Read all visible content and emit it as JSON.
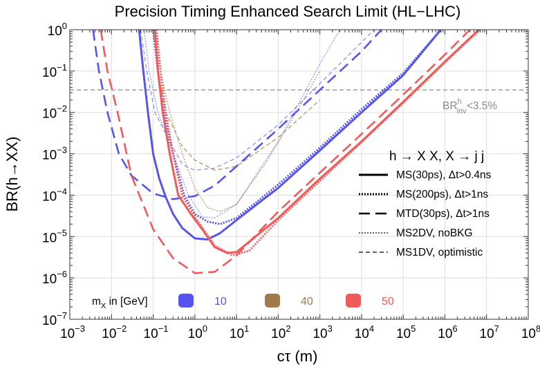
{
  "chart_data": {
    "type": "line",
    "title": "Precision Timing Enhanced Search Limit (HL−LHC)",
    "xlabel": "cτ (m)",
    "ylabel": "BR(h→XX)",
    "xscale": "log",
    "yscale": "log",
    "xlim": [
      0.001,
      100000000
    ],
    "ylim": [
      1e-07,
      1
    ],
    "grid": true,
    "x_ticks": [
      {
        "base": "10",
        "exp": "−3"
      },
      {
        "base": "10",
        "exp": "−2"
      },
      {
        "base": "10",
        "exp": "−1"
      },
      {
        "base": "10",
        "exp": "0"
      },
      {
        "base": "10",
        "exp": "1"
      },
      {
        "base": "10",
        "exp": "2"
      },
      {
        "base": "10",
        "exp": "3"
      },
      {
        "base": "10",
        "exp": "4"
      },
      {
        "base": "10",
        "exp": "5"
      },
      {
        "base": "10",
        "exp": "6"
      },
      {
        "base": "10",
        "exp": "7"
      },
      {
        "base": "10",
        "exp": "8"
      }
    ],
    "y_ticks": [
      {
        "base": "10",
        "exp": "−7"
      },
      {
        "base": "10",
        "exp": "−6"
      },
      {
        "base": "10",
        "exp": "−5"
      },
      {
        "base": "10",
        "exp": "−4"
      },
      {
        "base": "10",
        "exp": "−3"
      },
      {
        "base": "10",
        "exp": "−2"
      },
      {
        "base": "10",
        "exp": "−1"
      },
      {
        "base": "10",
        "exp": "0"
      }
    ],
    "reference_line": {
      "y": 0.035,
      "label_main": "BR",
      "label_sup": "h",
      "label_sub": "inv",
      "label_tail": "<3.5%",
      "color": "#8a8a8a"
    },
    "legend": {
      "heading": "h → X X, X → j j",
      "entries": [
        {
          "style": "solid",
          "label": "MS(30ps), Δt>0.4ns"
        },
        {
          "style": "dotted-thick",
          "label": "MS(200ps), Δt>1ns"
        },
        {
          "style": "dashed-thick",
          "label": "MTD(30ps), Δt>1ns"
        },
        {
          "style": "dotted-thin",
          "label": "MS2DV, noBKG"
        },
        {
          "style": "dashed-thin",
          "label": "MS1DV, optimistic"
        }
      ]
    },
    "mass_legend": {
      "label_main": "m",
      "label_sub": "X",
      "label_tail": " in [GeV]",
      "entries": [
        {
          "mass": "10",
          "color": "#5555ee"
        },
        {
          "mass": "40",
          "color": "#a07a4a"
        },
        {
          "mass": "50",
          "color": "#f05a5a"
        }
      ]
    },
    "series": [
      {
        "name": "MS(30ps) m=10",
        "mass": 10,
        "style": "solid",
        "color": "#5555ee",
        "points": [
          [
            0.046,
            1
          ],
          [
            0.058,
            0.1
          ],
          [
            0.075,
            0.01
          ],
          [
            0.1,
            0.001
          ],
          [
            0.14,
            0.00025
          ],
          [
            0.2,
            9e-05
          ],
          [
            0.3,
            3.5e-05
          ],
          [
            0.5,
            1.6e-05
          ],
          [
            1,
            9e-06
          ],
          [
            2,
            8.5e-06
          ],
          [
            4,
            1.2e-05
          ],
          [
            10,
            2.5e-05
          ],
          [
            100,
            0.00015
          ],
          [
            1000,
            0.0012
          ],
          [
            10000,
            0.01
          ],
          [
            100000,
            0.08
          ],
          [
            800000,
            1
          ]
        ]
      },
      {
        "name": "MS(200ps) m=10",
        "mass": 10,
        "style": "dotted-thick",
        "color": "#5555ee",
        "points": [
          [
            0.1,
            1
          ],
          [
            0.13,
            0.1
          ],
          [
            0.18,
            0.01
          ],
          [
            0.3,
            0.001
          ],
          [
            0.55,
            0.0001
          ],
          [
            1,
            3.5e-05
          ],
          [
            2,
            2.3e-05
          ],
          [
            4,
            2e-05
          ],
          [
            10,
            2.8e-05
          ],
          [
            100,
            0.00018
          ],
          [
            1000,
            0.0014
          ],
          [
            10000,
            0.012
          ],
          [
            100000,
            0.09
          ],
          [
            800000,
            1
          ]
        ]
      },
      {
        "name": "MTD(30ps) m=10",
        "mass": 10,
        "style": "dashed-thick",
        "color": "#5555ee",
        "points": [
          [
            0.0036,
            1
          ],
          [
            0.005,
            0.1
          ],
          [
            0.008,
            0.01
          ],
          [
            0.015,
            0.001
          ],
          [
            0.03,
            0.0003
          ],
          [
            0.1,
            0.00011
          ],
          [
            0.3,
            8e-05
          ],
          [
            1,
            9.5e-05
          ],
          [
            3,
            0.00017
          ],
          [
            10,
            0.0005
          ],
          [
            100,
            0.004
          ],
          [
            1000,
            0.035
          ],
          [
            10000,
            0.3
          ],
          [
            30000,
            1
          ]
        ]
      },
      {
        "name": "MS2DV noBKG m=10",
        "mass": 10,
        "style": "dotted-thin",
        "color": "#8888ff",
        "points": [
          [
            0.06,
            1
          ],
          [
            0.08,
            0.1
          ],
          [
            0.13,
            0.01
          ],
          [
            0.3,
            0.001
          ],
          [
            0.7,
            0.0001
          ],
          [
            1.5,
            3e-05
          ],
          [
            3,
            2.8e-05
          ],
          [
            10,
            6e-05
          ],
          [
            100,
            0.002
          ],
          [
            1000,
            0.15
          ],
          [
            3000,
            1
          ]
        ]
      },
      {
        "name": "MS1DV optimistic m=10",
        "mass": 10,
        "style": "dashed-thin",
        "color": "#8888ff",
        "points": [
          [
            0.05,
            1
          ],
          [
            0.07,
            0.1
          ],
          [
            0.11,
            0.01
          ],
          [
            0.25,
            0.002
          ],
          [
            0.5,
            0.00055
          ],
          [
            1,
            0.0004
          ],
          [
            3,
            0.00045
          ],
          [
            10,
            0.0008
          ],
          [
            100,
            0.005
          ],
          [
            1000,
            0.05
          ],
          [
            10000,
            0.5
          ],
          [
            20000,
            1
          ]
        ]
      },
      {
        "name": "MS2DV noBKG m=40",
        "mass": 40,
        "style": "dotted-thin",
        "color": "#b08a5a",
        "points": [
          [
            0.12,
            1
          ],
          [
            0.15,
            0.1
          ],
          [
            0.25,
            0.01
          ],
          [
            0.5,
            0.001
          ],
          [
            1,
            0.00015
          ],
          [
            2,
            5e-05
          ],
          [
            4,
            4e-05
          ],
          [
            10,
            6e-05
          ],
          [
            50,
            0.0006
          ],
          [
            200,
            0.006
          ],
          [
            1000,
            0.1
          ]
        ]
      },
      {
        "name": "MS1DV optimistic m=40",
        "mass": 40,
        "style": "dashed-thin",
        "color": "#b08a5a",
        "points": [
          [
            0.1,
            1
          ],
          [
            0.13,
            0.1
          ],
          [
            0.2,
            0.01
          ],
          [
            0.5,
            0.0015
          ],
          [
            1,
            0.0007
          ],
          [
            3,
            0.0004
          ],
          [
            10,
            0.0005
          ],
          [
            100,
            0.0025
          ],
          [
            1000,
            0.02
          ]
        ]
      },
      {
        "name": "MS(30ps) m=50",
        "mass": 50,
        "style": "solid",
        "color": "#f05a5a",
        "points": [
          [
            0.11,
            1
          ],
          [
            0.13,
            0.1
          ],
          [
            0.17,
            0.01
          ],
          [
            0.25,
            0.001
          ],
          [
            0.4,
            0.0001
          ],
          [
            0.8,
            3.5e-05
          ],
          [
            1.5,
            1.5e-05
          ],
          [
            3,
            5.5e-06
          ],
          [
            6,
            4e-06
          ],
          [
            10,
            4.2e-06
          ],
          [
            100,
            2.8e-05
          ],
          [
            1000,
            0.00025
          ],
          [
            10000,
            0.002
          ],
          [
            100000,
            0.018
          ],
          [
            1000000,
            0.17
          ],
          [
            6500000,
            1
          ]
        ]
      },
      {
        "name": "MS(200ps) m=50",
        "mass": 50,
        "style": "dotted-thick",
        "color": "#f05a5a",
        "points": [
          [
            0.12,
            1
          ],
          [
            0.15,
            0.1
          ],
          [
            0.2,
            0.01
          ],
          [
            0.3,
            0.001
          ],
          [
            0.5,
            0.0001
          ],
          [
            1,
            3e-05
          ],
          [
            3,
            6e-06
          ],
          [
            8,
            3.5e-06
          ],
          [
            20,
            4.5e-06
          ],
          [
            100,
            2.5e-05
          ],
          [
            1000,
            0.00022
          ],
          [
            10000,
            0.0019
          ],
          [
            100000,
            0.017
          ],
          [
            1000000,
            0.16
          ],
          [
            7000000,
            1
          ]
        ]
      },
      {
        "name": "MTD(30ps) m=50",
        "mass": 50,
        "style": "dashed-thick",
        "color": "#f05a5a",
        "points": [
          [
            0.0055,
            1
          ],
          [
            0.008,
            0.1
          ],
          [
            0.014,
            0.01
          ],
          [
            0.03,
            0.0003
          ],
          [
            0.1,
            1.5e-05
          ],
          [
            0.3,
            3e-06
          ],
          [
            1,
            1.3e-06
          ],
          [
            3,
            1.4e-06
          ],
          [
            10,
            3.5e-06
          ],
          [
            100,
            4e-05
          ],
          [
            1000,
            0.00035
          ],
          [
            10000,
            0.003
          ],
          [
            100000,
            0.027
          ],
          [
            1000000,
            0.25
          ],
          [
            4000000,
            1
          ]
        ]
      }
    ]
  }
}
